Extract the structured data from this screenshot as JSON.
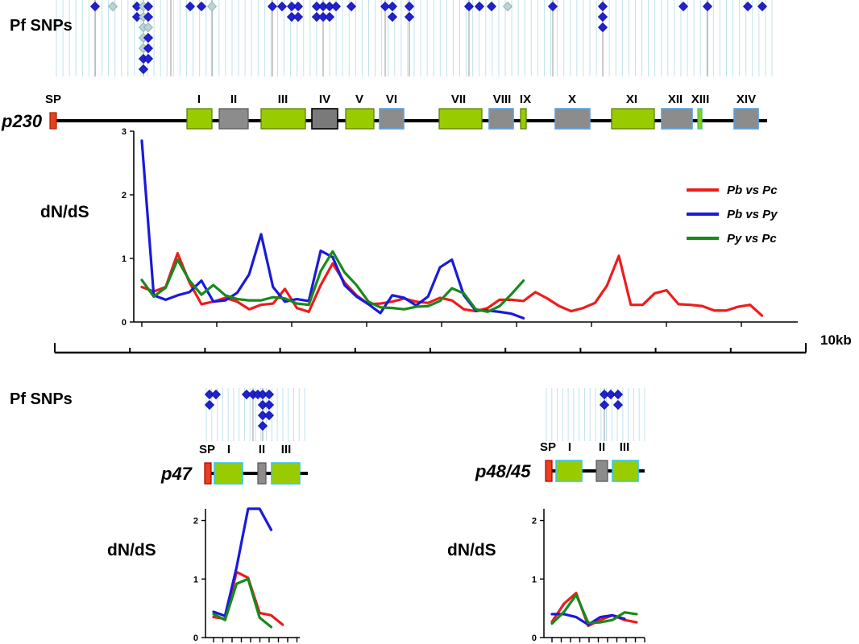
{
  "section_titles": {
    "snps_top": "Pf SNPs",
    "snps_bottom": "Pf SNPs"
  },
  "scale_label": "10kb",
  "legend": {
    "pb_pc": "Pb vs Pc",
    "pb_py": "Pb vs Py",
    "py_pc": "Py vs Pc"
  },
  "colors": {
    "pb_pc": "#ee1c1c",
    "pb_py": "#1a1adb",
    "py_pc": "#178a1c",
    "domain_green": "#99cc00",
    "domain_gray": "#8c8c8c",
    "signal_peptide": "#e8401c",
    "snp": "#2222cc"
  },
  "genes": {
    "p230": {
      "name": "p230",
      "domains": [
        "SP",
        "I",
        "II",
        "III",
        "IV",
        "V",
        "VI",
        "VII",
        "VIII",
        "IX",
        "X",
        "XI",
        "XII",
        "XIII",
        "XIV"
      ]
    },
    "p47": {
      "name": "p47",
      "domains": [
        "SP",
        "I",
        "II",
        "III"
      ]
    },
    "p4845": {
      "name": "p48/45",
      "domains": [
        "SP",
        "I",
        "II",
        "III"
      ]
    }
  },
  "chart_data": [
    {
      "type": "line",
      "gene": "p230",
      "ylabel": "dN/dS",
      "xlabel": "",
      "ylim": [
        0,
        3
      ],
      "yticks": [
        "0",
        "1",
        "2",
        "3"
      ],
      "legend_position": "right",
      "series": [
        {
          "name": "Pb vs Pc",
          "color": "#ee1c1c",
          "values": [
            0.55,
            0.48,
            0.55,
            1.08,
            0.62,
            0.28,
            0.32,
            0.38,
            0.32,
            0.2,
            0.27,
            0.29,
            0.52,
            0.22,
            0.16,
            0.58,
            0.92,
            0.62,
            0.42,
            0.28,
            0.29,
            0.32,
            0.37,
            0.32,
            0.3,
            0.38,
            0.34,
            0.2,
            0.17,
            0.22,
            0.35,
            0.35,
            0.33,
            0.47,
            0.37,
            0.25,
            0.17,
            0.22,
            0.3,
            0.57,
            1.04,
            0.27,
            0.27,
            0.45,
            0.5,
            0.28,
            0.27,
            0.25,
            0.18,
            0.18,
            0.24,
            0.27,
            0.1
          ]
        },
        {
          "name": "Pb vs Py",
          "color": "#1a1adb",
          "values": [
            2.85,
            0.42,
            0.35,
            0.42,
            0.47,
            0.65,
            0.32,
            0.34,
            0.46,
            0.75,
            1.38,
            0.55,
            0.32,
            0.36,
            0.33,
            1.12,
            1.02,
            0.58,
            0.4,
            0.28,
            0.14,
            0.42,
            0.38,
            0.26,
            0.4,
            0.86,
            0.98,
            0.42,
            0.18,
            0.18,
            0.16,
            0.13,
            0.06
          ]
        },
        {
          "name": "Py vs Pc",
          "color": "#178a1c",
          "values": [
            0.66,
            0.4,
            0.54,
            0.98,
            0.65,
            0.43,
            0.58,
            0.42,
            0.36,
            0.34,
            0.34,
            0.39,
            0.37,
            0.29,
            0.27,
            0.8,
            1.11,
            0.78,
            0.58,
            0.32,
            0.23,
            0.22,
            0.2,
            0.24,
            0.25,
            0.33,
            0.53,
            0.45,
            0.2,
            0.16,
            0.25,
            0.44,
            0.65
          ]
        }
      ]
    },
    {
      "type": "line",
      "gene": "p47",
      "ylabel": "dN/dS",
      "xlabel": "",
      "ylim": [
        0,
        2.2
      ],
      "yticks": [
        "0",
        "1",
        "2"
      ],
      "series": [
        {
          "name": "Pb vs Pc",
          "color": "#ee1c1c",
          "values": [
            0.35,
            0.32,
            1.12,
            1.02,
            0.42,
            0.38,
            0.22
          ]
        },
        {
          "name": "Pb vs Py",
          "color": "#1a1adb",
          "values": [
            0.44,
            0.37,
            1.2,
            2.2,
            2.2,
            1.84
          ]
        },
        {
          "name": "Py vs Pc",
          "color": "#178a1c",
          "values": [
            0.4,
            0.3,
            0.92,
            1.0,
            0.34,
            0.18
          ]
        }
      ]
    },
    {
      "type": "line",
      "gene": "p48/45",
      "ylabel": "dN/dS",
      "xlabel": "",
      "ylim": [
        0,
        2.2
      ],
      "yticks": [
        "0",
        "1",
        "2"
      ],
      "series": [
        {
          "name": "Pb vs Pc",
          "color": "#ee1c1c",
          "values": [
            0.27,
            0.58,
            0.76,
            0.2,
            0.3,
            0.38,
            0.3,
            0.26
          ]
        },
        {
          "name": "Pb vs Py",
          "color": "#1a1adb",
          "values": [
            0.4,
            0.4,
            0.35,
            0.22,
            0.35,
            0.38,
            0.32
          ]
        },
        {
          "name": "Py vs Pc",
          "color": "#178a1c",
          "values": [
            0.24,
            0.44,
            0.73,
            0.25,
            0.26,
            0.3,
            0.43,
            0.4
          ]
        }
      ]
    }
  ]
}
